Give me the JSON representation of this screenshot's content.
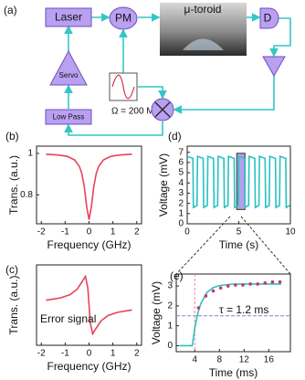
{
  "diagram": {
    "label": "(a)",
    "laser": "Laser",
    "pm": "PM",
    "toroid": "μ-toroid",
    "detector": "D",
    "servo": "Servo",
    "lowpass": "Low Pass",
    "modulation": "Ω = 200 MHz"
  },
  "chart_data": [
    {
      "type": "line",
      "label": "(b)",
      "xlabel": "Frequency (GHz)",
      "ylabel": "Trans. (a.u.)",
      "xlim": [
        -2.2,
        2.2
      ],
      "ylim": [
        0.66,
        1.035
      ],
      "xticks": [
        -2,
        -1,
        0,
        1,
        2
      ],
      "yticks": [
        1,
        0.8
      ],
      "series": [
        {
          "style": "line",
          "color": "#e8425a",
          "x": [
            -1.8,
            -1.5,
            -1.2,
            -0.9,
            -0.6,
            -0.4,
            -0.3,
            -0.2,
            -0.1,
            0,
            0.1,
            0.2,
            0.3,
            0.4,
            0.6,
            0.9,
            1.2,
            1.5,
            1.8
          ],
          "values": [
            0.996,
            0.994,
            0.991,
            0.985,
            0.968,
            0.936,
            0.902,
            0.84,
            0.744,
            0.68,
            0.744,
            0.84,
            0.902,
            0.936,
            0.968,
            0.985,
            0.991,
            0.994,
            0.996
          ]
        }
      ]
    },
    {
      "type": "line",
      "label": "(c)",
      "xlabel": "Frequency (GHz)",
      "ylabel": "Trans. (a.u.)",
      "annotation": "Error signal",
      "xlim": [
        -2.2,
        2.2
      ],
      "ylim": [
        -1.4,
        1.4
      ],
      "xticks": [
        -2,
        -1,
        0,
        1,
        2
      ],
      "series": [
        {
          "style": "line",
          "color": "#e8425a",
          "x": [
            -1.8,
            -1.2,
            -0.8,
            -0.5,
            -0.3,
            -0.15,
            -0.05,
            0,
            0.05,
            0.15,
            0.3,
            0.5,
            0.8,
            1.2,
            1.8
          ],
          "values": [
            0.17,
            0.25,
            0.36,
            0.55,
            0.8,
            1,
            0.6,
            0,
            -0.6,
            -1,
            -0.8,
            -0.55,
            -0.36,
            -0.25,
            -0.17
          ]
        }
      ]
    },
    {
      "type": "line",
      "label": "(d)",
      "xlabel": "Time (s)",
      "ylabel": "Voltage (mV)",
      "xlim": [
        0,
        10
      ],
      "ylim": [
        0,
        7.6
      ],
      "xticks": [
        0,
        5,
        10
      ],
      "yticks": [
        0,
        1,
        2,
        3,
        4,
        5,
        6,
        7
      ],
      "highlight": {
        "x": [
          4.8,
          5.6
        ],
        "y": [
          1.4,
          6.9
        ],
        "color": "#a98ee8"
      },
      "series": [
        {
          "style": "line",
          "color": "#29c1c1",
          "x": [
            0,
            0.55,
            0.6,
            0.95,
            1,
            1.55,
            1.6,
            1.95,
            2,
            2.55,
            2.6,
            2.95,
            3,
            3.55,
            3.6,
            3.95,
            4,
            4.55,
            4.6,
            4.95,
            5,
            5.55,
            5.6,
            5.95,
            6,
            6.55,
            6.6,
            6.95,
            7,
            7.55,
            7.6,
            7.95,
            8,
            8.55,
            8.6,
            8.95,
            9,
            9.55,
            9.6,
            9.95
          ],
          "values": [
            6.6,
            6.4,
            1.6,
            1.8,
            6.6,
            6.4,
            1.6,
            1.8,
            6.6,
            6.4,
            1.6,
            1.8,
            6.6,
            6.4,
            1.6,
            1.8,
            6.6,
            6.4,
            1.6,
            1.8,
            6.6,
            6.4,
            1.6,
            1.8,
            6.6,
            6.4,
            1.6,
            1.8,
            6.6,
            6.4,
            1.6,
            1.8,
            6.6,
            6.4,
            1.6,
            1.8,
            6.6,
            6.4,
            1.6,
            1.8
          ]
        }
      ]
    },
    {
      "type": "line",
      "label": "(e)",
      "xlabel": "Time (ms)",
      "ylabel": "Voltage (mV)",
      "annotation": "τ = 1.2 ms",
      "xlim": [
        1,
        19.5
      ],
      "ylim": [
        -0.3,
        3.6
      ],
      "xticks": [
        4,
        8,
        12,
        16
      ],
      "yticks": [
        0,
        1,
        2,
        3
      ],
      "hline": 1.5,
      "vline": 4,
      "series": [
        {
          "style": "line",
          "color": "#29c1c1",
          "x": [
            1.5,
            3.2,
            3.6,
            4,
            4.5,
            5,
            6,
            7,
            8,
            10,
            12,
            14,
            16,
            18
          ],
          "values": [
            0,
            0,
            0,
            0.88,
            1.64,
            2.13,
            2.68,
            2.92,
            3.02,
            3.09,
            3.1,
            3.1,
            3.1,
            3.1
          ]
        },
        {
          "style": "dots",
          "color": "#c8356b",
          "x": [
            4.6,
            5.8,
            7,
            8.2,
            9.4,
            10.6,
            11.8,
            13,
            14.2,
            15.4,
            16.6,
            17.8
          ],
          "values": [
            1.9,
            2.5,
            2.75,
            2.9,
            3.0,
            3.05,
            3.05,
            3.1,
            3.1,
            3.15,
            3.2,
            3.2
          ]
        }
      ]
    }
  ]
}
